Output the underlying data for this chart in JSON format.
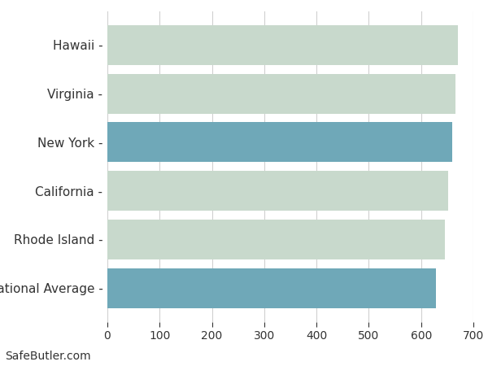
{
  "categories": [
    "National Average",
    "Rhode Island",
    "California",
    "New York",
    "Virginia",
    "Hawaii"
  ],
  "values": [
    628,
    645,
    651,
    660,
    665,
    670
  ],
  "bar_colors": [
    "#6fa8b8",
    "#c8d9cc",
    "#c8d9cc",
    "#6fa8b8",
    "#c8d9cc",
    "#c8d9cc"
  ],
  "xlim": [
    0,
    700
  ],
  "xticks": [
    0,
    100,
    200,
    300,
    400,
    500,
    600,
    700
  ],
  "background_color": "#ffffff",
  "grid_color": "#d0d0d0",
  "text_color": "#333333",
  "bar_height": 0.82,
  "footer_text": "SafeButler.com",
  "footer_fontsize": 10,
  "label_fontsize": 11,
  "tick_fontsize": 10
}
